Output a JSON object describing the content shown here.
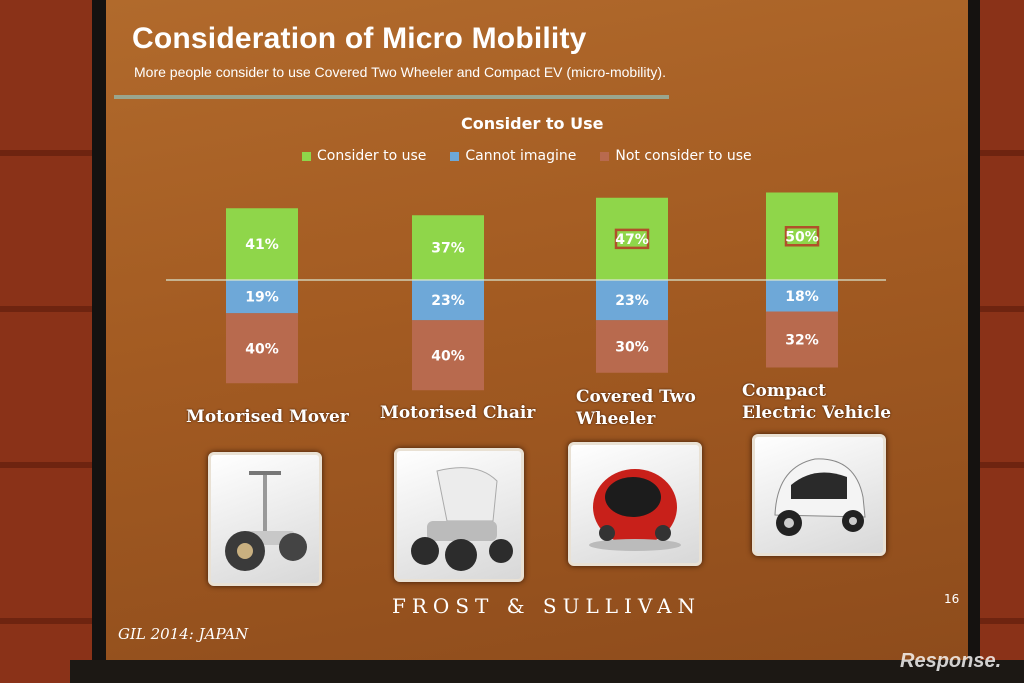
{
  "slide": {
    "title": "Consideration of Micro Mobility",
    "subtitle": "More people consider to use Covered Two Wheeler and Compact EV (micro-mobility).",
    "logo": "FROST & SULLIVAN",
    "page_number": "16",
    "footer": "GIL 2014: JAPAN",
    "watermark": "Response."
  },
  "colors": {
    "consider": "#8fd64a",
    "cannot": "#6ea8d8",
    "not_consider": "#b86a4e"
  },
  "vehicles": [
    {
      "name": "Motorised Mover",
      "icon": "segway-icon"
    },
    {
      "name": "Motorised Chair",
      "icon": "motorised-chair-icon"
    },
    {
      "name": "Covered Two Wheeler",
      "icon": "covered-two-wheeler-icon"
    },
    {
      "name": "Compact Electric Vehicle",
      "icon": "compact-ev-icon"
    }
  ],
  "chart_data": {
    "type": "bar",
    "stacked": true,
    "title": "Consider to Use",
    "legend_position": "top-center",
    "categories": [
      "Motorised Mover",
      "Motorised Chair",
      "Covered Two Wheeler",
      "Compact Electric Vehicle"
    ],
    "series": [
      {
        "name": "Consider to use",
        "values": [
          41,
          37,
          47,
          50
        ],
        "labels": [
          "41%",
          "37%",
          "47%",
          "50%"
        ]
      },
      {
        "name": "Cannot imagine",
        "values": [
          19,
          23,
          23,
          18
        ],
        "labels": [
          "19%",
          "23%",
          "23%",
          "18%"
        ]
      },
      {
        "name": "Not consider to use",
        "values": [
          40,
          40,
          30,
          32
        ],
        "labels": [
          "40%",
          "40%",
          "30%",
          "32%"
        ]
      }
    ],
    "highlighted": [
      "47%",
      "50%"
    ],
    "baseline": "between Consider to use and Cannot imagine"
  }
}
